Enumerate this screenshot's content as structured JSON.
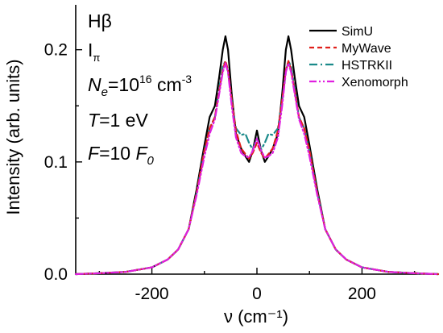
{
  "chart_data": {
    "type": "line",
    "xlabel": "ν (cm⁻¹)",
    "ylabel": "Intensity (arb. units)",
    "xlim": [
      -345,
      345
    ],
    "ylim": [
      0,
      0.24
    ],
    "x_ticks": [
      -200,
      0,
      200
    ],
    "y_ticks": [
      0.0,
      0.1,
      0.2
    ],
    "x_tick_labels": [
      "-200",
      "0",
      "200"
    ],
    "y_tick_labels": [
      "0.0",
      "0.1",
      "0.2"
    ],
    "grid": false,
    "legend_position": "top-right",
    "annotations": {
      "line": "Hβ",
      "component_base": "I",
      "component_sub": "π",
      "ne_sym": "N",
      "ne_sub": "e",
      "ne_eq": "=10",
      "ne_exp": "16",
      "ne_unit": " cm",
      "ne_unit_exp": "-3",
      "t_sym": "T",
      "t_val": "=1 eV",
      "f_sym": "F",
      "f_val": "=10 ",
      "f0_sym": "F",
      "f0_sub": "0"
    },
    "series": [
      {
        "name": "SimU",
        "color": "#000000",
        "dash": "solid",
        "x": [
          -345,
          -300,
          -250,
          -200,
          -170,
          -150,
          -130,
          -115,
          -100,
          -90,
          -80,
          -72,
          -65,
          -60,
          -55,
          -48,
          -40,
          -30,
          -22,
          -15,
          -8,
          0,
          8,
          15,
          22,
          30,
          40,
          48,
          55,
          60,
          65,
          72,
          80,
          90,
          100,
          115,
          130,
          150,
          170,
          200,
          250,
          300,
          345
        ],
        "y": [
          0,
          0.0008,
          0.002,
          0.006,
          0.013,
          0.022,
          0.04,
          0.075,
          0.115,
          0.14,
          0.15,
          0.175,
          0.2,
          0.212,
          0.2,
          0.16,
          0.125,
          0.112,
          0.105,
          0.1,
          0.11,
          0.128,
          0.11,
          0.1,
          0.105,
          0.112,
          0.125,
          0.16,
          0.2,
          0.212,
          0.2,
          0.175,
          0.15,
          0.14,
          0.115,
          0.075,
          0.04,
          0.022,
          0.013,
          0.006,
          0.002,
          0.0008,
          0
        ]
      },
      {
        "name": "MyWave",
        "color": "#e0201b",
        "dash": "dashed",
        "x": [
          -345,
          -300,
          -250,
          -200,
          -170,
          -150,
          -130,
          -115,
          -100,
          -90,
          -80,
          -72,
          -65,
          -60,
          -55,
          -48,
          -40,
          -30,
          -22,
          -15,
          -8,
          0,
          8,
          15,
          22,
          30,
          40,
          48,
          55,
          60,
          65,
          72,
          80,
          90,
          100,
          115,
          130,
          150,
          170,
          200,
          250,
          300,
          345
        ],
        "y": [
          0,
          0.0008,
          0.002,
          0.006,
          0.013,
          0.022,
          0.04,
          0.072,
          0.11,
          0.13,
          0.14,
          0.163,
          0.182,
          0.19,
          0.182,
          0.155,
          0.128,
          0.112,
          0.107,
          0.103,
          0.108,
          0.117,
          0.108,
          0.103,
          0.107,
          0.112,
          0.128,
          0.155,
          0.182,
          0.19,
          0.182,
          0.163,
          0.14,
          0.13,
          0.11,
          0.072,
          0.04,
          0.022,
          0.013,
          0.006,
          0.002,
          0.0008,
          0
        ]
      },
      {
        "name": "HSTRKII",
        "color": "#1a8a8a",
        "dash": "dashdot",
        "x": [
          -345,
          -300,
          -250,
          -200,
          -170,
          -150,
          -130,
          -115,
          -100,
          -90,
          -80,
          -72,
          -65,
          -60,
          -55,
          -48,
          -40,
          -30,
          -22,
          -15,
          -8,
          0,
          8,
          15,
          22,
          30,
          40,
          48,
          55,
          60,
          65,
          72,
          80,
          90,
          100,
          115,
          130,
          150,
          170,
          200,
          250,
          300,
          345
        ],
        "y": [
          0,
          0.0008,
          0.002,
          0.006,
          0.013,
          0.022,
          0.04,
          0.072,
          0.11,
          0.13,
          0.14,
          0.165,
          0.185,
          0.19,
          0.18,
          0.155,
          0.13,
          0.124,
          0.125,
          0.117,
          0.111,
          0.121,
          0.111,
          0.117,
          0.125,
          0.124,
          0.13,
          0.155,
          0.18,
          0.19,
          0.185,
          0.165,
          0.14,
          0.13,
          0.11,
          0.072,
          0.04,
          0.022,
          0.013,
          0.006,
          0.002,
          0.0008,
          0
        ]
      },
      {
        "name": "Xenomorph",
        "color": "#e020e0",
        "dash": "dashdotdot",
        "x": [
          -345,
          -300,
          -250,
          -200,
          -170,
          -150,
          -130,
          -115,
          -100,
          -90,
          -80,
          -72,
          -65,
          -60,
          -55,
          -48,
          -40,
          -30,
          -22,
          -15,
          -8,
          0,
          8,
          15,
          22,
          30,
          40,
          48,
          55,
          60,
          65,
          72,
          80,
          90,
          100,
          115,
          130,
          150,
          170,
          200,
          250,
          300,
          345
        ],
        "y": [
          0,
          0.0008,
          0.002,
          0.006,
          0.013,
          0.022,
          0.04,
          0.07,
          0.105,
          0.125,
          0.138,
          0.16,
          0.18,
          0.188,
          0.18,
          0.15,
          0.122,
          0.108,
          0.105,
          0.104,
          0.11,
          0.121,
          0.11,
          0.104,
          0.105,
          0.108,
          0.122,
          0.15,
          0.18,
          0.188,
          0.18,
          0.16,
          0.138,
          0.125,
          0.105,
          0.07,
          0.04,
          0.022,
          0.013,
          0.006,
          0.002,
          0.0008,
          0
        ]
      }
    ]
  }
}
